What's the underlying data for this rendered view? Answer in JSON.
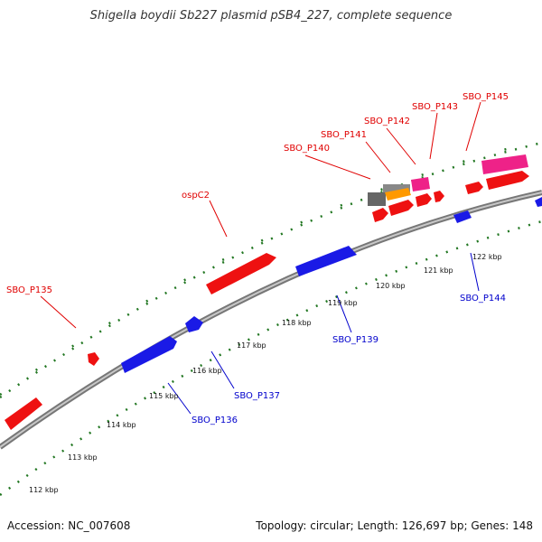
{
  "title": "Shigella boydii Sb227 plasmid pSB4_227, complete sequence",
  "footer": {
    "accession": "Accession: NC_007608",
    "summary": "Topology: circular; Length: 126,697 bp; Genes: 148"
  },
  "ticks": [
    {
      "label": "112 kbp"
    },
    {
      "label": "113 kbp"
    },
    {
      "label": "114 kbp"
    },
    {
      "label": "115 kbp"
    },
    {
      "label": "116 kbp"
    },
    {
      "label": "117 kbp"
    },
    {
      "label": "118 kbp"
    },
    {
      "label": "119 kbp"
    },
    {
      "label": "120 kbp"
    },
    {
      "label": "121 kbp"
    },
    {
      "label": "122 kbp"
    }
  ],
  "gene_labels": [
    {
      "name": "SBO_P135",
      "color": "#e00000"
    },
    {
      "name": "ospC2",
      "color": "#e00000"
    },
    {
      "name": "SBO_P140",
      "color": "#e00000"
    },
    {
      "name": "SBO_P141",
      "color": "#e00000"
    },
    {
      "name": "SBO_P142",
      "color": "#e00000"
    },
    {
      "name": "SBO_P143",
      "color": "#e00000"
    },
    {
      "name": "SBO_P145",
      "color": "#e00000"
    },
    {
      "name": "SBO_P136",
      "color": "#0000cc"
    },
    {
      "name": "SBO_P137",
      "color": "#0000cc"
    },
    {
      "name": "SBO_P139",
      "color": "#0000cc"
    },
    {
      "name": "SBO_P144",
      "color": "#0000cc"
    }
  ],
  "colors": {
    "forward_gene": "#ee1111",
    "reverse_gene": "#1a1ae6",
    "pink_feature": "#ee2288",
    "orange_feature": "#ff9900",
    "gray_feature": "#666666",
    "backbone": "#888888",
    "tick_mark": "#227722"
  }
}
